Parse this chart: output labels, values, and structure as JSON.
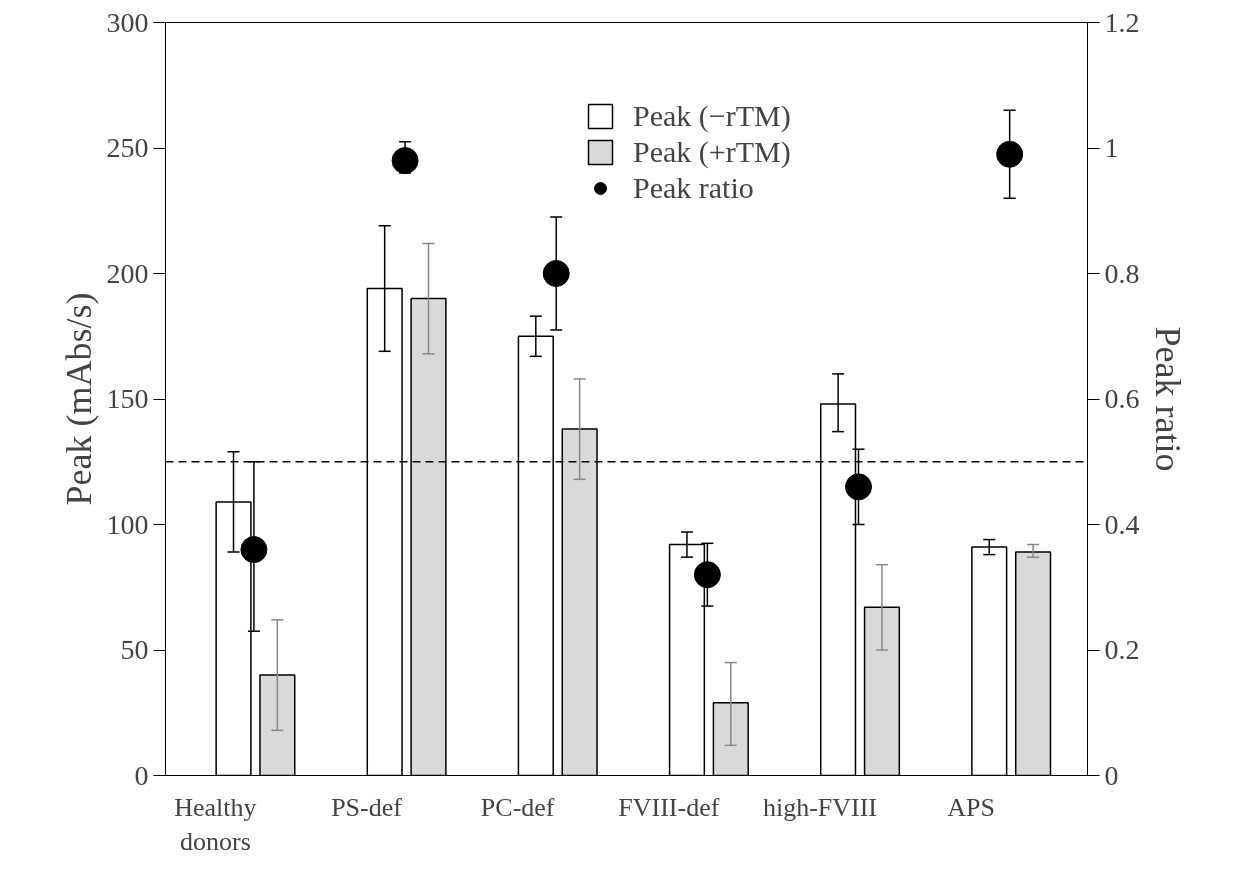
{
  "chart_data": {
    "type": "bar",
    "ylabel": "Peak (mAbs/s)",
    "y2label": "Peak ratio",
    "categories": [
      "Healthy donors",
      "PS-def",
      "PC-def",
      "FVIII-def",
      "high-FVIII",
      "APS"
    ],
    "series": [
      {
        "name": "Peak (−rTM)",
        "color": "#ffffff",
        "values": [
          109,
          194,
          175,
          92,
          148,
          91
        ],
        "errors": [
          [
            89,
            129
          ],
          [
            169,
            219
          ],
          [
            167,
            183
          ],
          [
            87,
            97
          ],
          [
            137,
            160
          ],
          [
            88,
            94
          ]
        ]
      },
      {
        "name": "Peak (+rTM)",
        "color": "#d9d9d9",
        "values": [
          40,
          190,
          138,
          29,
          67,
          89
        ],
        "errors": [
          [
            18,
            62
          ],
          [
            168,
            212
          ],
          [
            118,
            158
          ],
          [
            12,
            45
          ],
          [
            50,
            84
          ],
          [
            87,
            92
          ]
        ]
      },
      {
        "name": "Peak ratio",
        "type": "scatter",
        "axis": "y2",
        "color": "#000000",
        "marker": "circle",
        "values": [
          0.36,
          0.98,
          0.8,
          0.32,
          0.46,
          0.99
        ],
        "errors": [
          [
            0.23,
            0.5
          ],
          [
            0.96,
            1.01
          ],
          [
            0.71,
            0.89
          ],
          [
            0.27,
            0.37
          ],
          [
            0.4,
            0.52
          ],
          [
            0.92,
            1.06
          ]
        ]
      }
    ],
    "ylim": [
      0,
      300
    ],
    "yticks": [
      0,
      50,
      100,
      150,
      200,
      250,
      300
    ],
    "y2lim": [
      0,
      1.2
    ],
    "y2ticks": [
      0,
      0.2,
      0.4,
      0.6,
      0.8,
      1,
      1.2
    ],
    "ref_lines": [
      {
        "axis": "y2",
        "value": 0.5,
        "line_style": "dashed",
        "color": "#000000"
      }
    ],
    "grid": false,
    "legend": "top right"
  }
}
